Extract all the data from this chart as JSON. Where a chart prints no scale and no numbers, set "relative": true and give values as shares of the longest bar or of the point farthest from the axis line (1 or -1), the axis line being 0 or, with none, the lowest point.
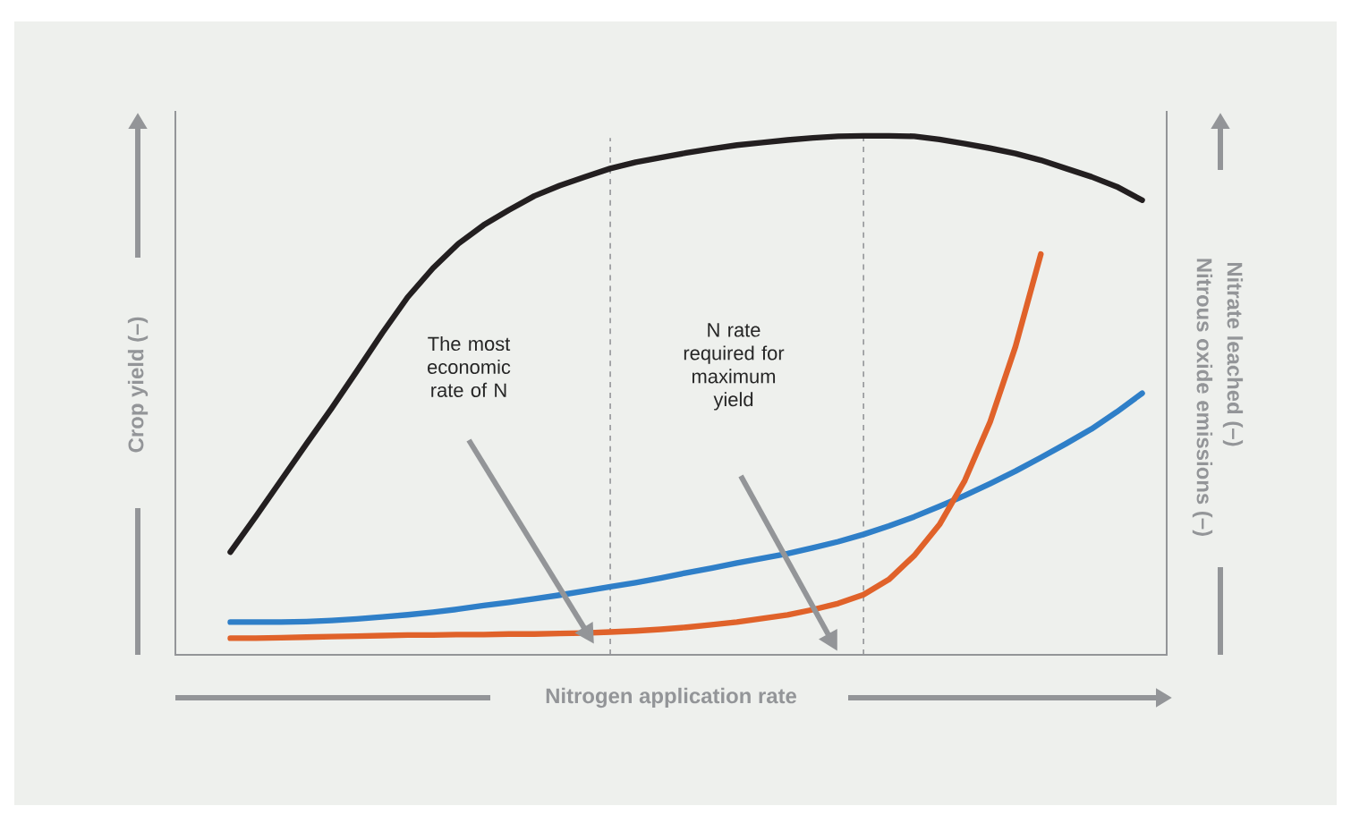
{
  "chart_data": {
    "type": "line",
    "relative": true,
    "marker": "none",
    "line_style": "solid",
    "xlabel": "Nitrogen application rate",
    "ylabel": "Crop yield (–)",
    "y2label": "Nitrate leached (–)",
    "y3label": "Nitrous oxide emissions (–)",
    "categories": [
      null,
      null,
      null,
      null,
      null,
      null,
      null,
      null,
      null,
      null,
      null,
      null,
      null,
      null,
      null,
      null,
      null,
      null,
      null,
      null,
      null,
      null,
      null,
      null,
      null,
      null,
      null,
      null,
      null,
      null,
      null,
      null,
      null,
      null,
      null,
      null,
      null
    ],
    "series": [
      {
        "color": "#231f20",
        "values": [
          0.198,
          0.266,
          0.336,
          0.406,
          0.475,
          0.547,
          0.62,
          0.689,
          0.745,
          0.792,
          0.828,
          0.857,
          0.884,
          0.904,
          0.921,
          0.937,
          0.949,
          0.958,
          0.967,
          0.975,
          0.982,
          0.987,
          0.992,
          0.996,
          0.999,
          1,
          1,
          0.999,
          0.993,
          0.985,
          0.976,
          0.966,
          0.953,
          0.937,
          0.921,
          0.902,
          0.876
        ]
      },
      {
        "color": "#2f7fc8",
        "values": [
          0.063,
          0.063,
          0.063,
          0.064,
          0.066,
          0.069,
          0.073,
          0.077,
          0.082,
          0.088,
          0.095,
          0.101,
          0.108,
          0.115,
          0.123,
          0.131,
          0.139,
          0.148,
          0.158,
          0.167,
          0.177,
          0.186,
          0.195,
          0.206,
          0.218,
          0.232,
          0.248,
          0.266,
          0.286,
          0.307,
          0.33,
          0.354,
          0.38,
          0.407,
          0.435,
          0.468,
          0.504
        ]
      },
      {
        "color": "#e0622a",
        "values": [
          0.032,
          0.032,
          0.033,
          0.034,
          0.035,
          0.036,
          0.037,
          0.038,
          0.038,
          0.039,
          0.039,
          0.04,
          0.04,
          0.041,
          0.042,
          0.044,
          0.046,
          0.049,
          0.053,
          0.058,
          0.063,
          0.07,
          0.077,
          0.087,
          0.099,
          0.116,
          0.145,
          0.191,
          0.251,
          0.336,
          0.449,
          0.594,
          0.772,
          null,
          null,
          null,
          null
        ]
      }
    ],
    "annotations": [
      "The most economic rate of N",
      "N rate required for maximum yield"
    ]
  }
}
